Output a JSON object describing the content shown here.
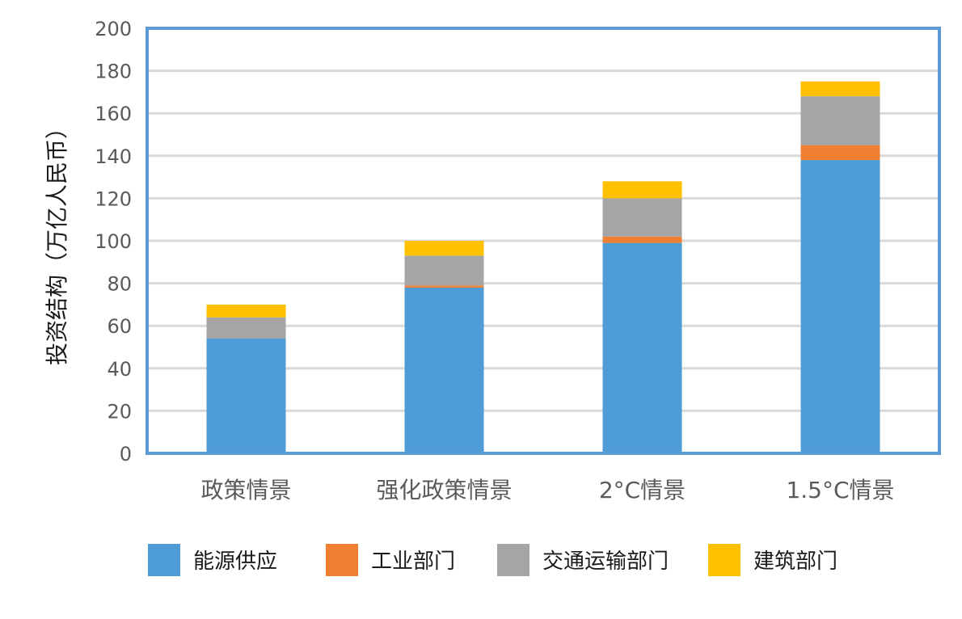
{
  "chart_data": {
    "type": "bar",
    "stacked": true,
    "title": "",
    "xlabel": "",
    "ylabel": "投资结构（万亿人民币）",
    "ylim": [
      0,
      200
    ],
    "yticks": [
      0,
      20,
      40,
      60,
      80,
      100,
      120,
      140,
      160,
      180,
      200
    ],
    "grid": true,
    "legend_position": "bottom",
    "categories": [
      "政策情景",
      "强化政策情景",
      "2°C情景",
      "1.5°C情景"
    ],
    "series": [
      {
        "name": "能源供应",
        "color": "#4e9cd6",
        "values": [
          54,
          78,
          99,
          138
        ]
      },
      {
        "name": "工业部门",
        "color": "#f07f32",
        "values": [
          0,
          1,
          3,
          7
        ]
      },
      {
        "name": "交通运输部门",
        "color": "#a5a5a5",
        "values": [
          10,
          14,
          18,
          23
        ]
      },
      {
        "name": "建筑部门",
        "color": "#ffc000",
        "values": [
          6,
          7,
          8,
          7
        ]
      }
    ],
    "frame_color": "#5b9bd5",
    "grid_color": "#d9d9d9"
  }
}
